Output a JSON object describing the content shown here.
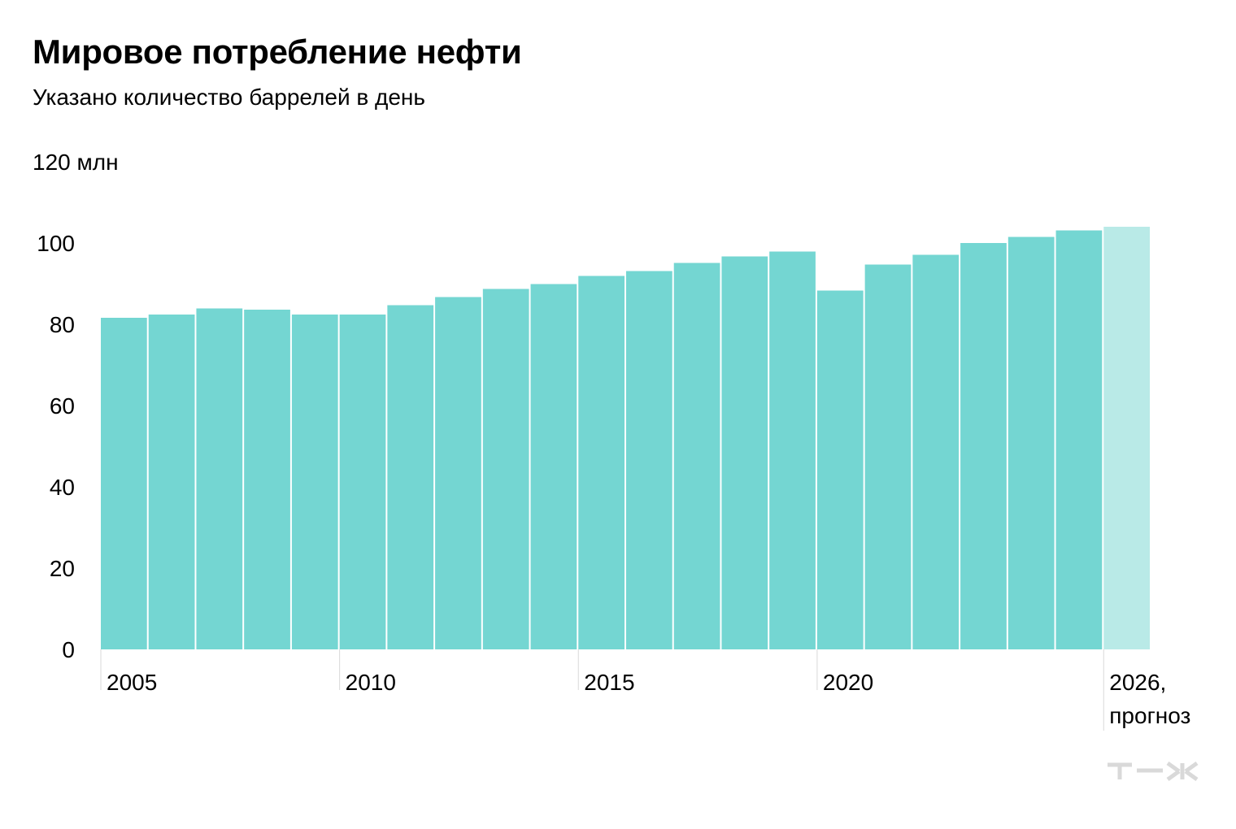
{
  "title": "Мировое потребление нефти",
  "subtitle": "Указано количество баррелей в день",
  "logo_text": "т—ж",
  "colors": {
    "bar": "#74d6d2",
    "bar_forecast": "#b9eae7",
    "text": "#000000",
    "tick": "#d9d9d9",
    "logo": "#d9d9d9"
  },
  "chart_data": {
    "type": "bar",
    "title": "Мировое потребление нефти",
    "subtitle": "Указано количество баррелей в день",
    "ylim": [
      0,
      120
    ],
    "yticks": [
      {
        "value": 0,
        "label": "0"
      },
      {
        "value": 20,
        "label": "20"
      },
      {
        "value": 40,
        "label": "40"
      },
      {
        "value": 60,
        "label": "60"
      },
      {
        "value": 80,
        "label": "80"
      },
      {
        "value": 100,
        "label": "100"
      },
      {
        "value": 120,
        "label": "120 млн"
      }
    ],
    "categories": [
      "2005",
      "2006",
      "2007",
      "2008",
      "2009",
      "2010",
      "2011",
      "2012",
      "2013",
      "2014",
      "2015",
      "2016",
      "2017",
      "2018",
      "2019",
      "2020",
      "2021",
      "2022",
      "2023",
      "2024",
      "2025",
      "2026"
    ],
    "values": [
      81.6,
      82.4,
      83.9,
      83.6,
      82.4,
      82.4,
      84.7,
      86.7,
      88.7,
      89.9,
      91.9,
      93.1,
      95.1,
      96.7,
      97.9,
      88.3,
      94.7,
      97.1,
      100.0,
      101.5,
      103.1,
      104.0
    ],
    "forecast": [
      false,
      false,
      false,
      false,
      false,
      false,
      false,
      false,
      false,
      false,
      false,
      false,
      false,
      false,
      false,
      false,
      false,
      false,
      false,
      false,
      false,
      true
    ],
    "xlabels": [
      {
        "category": "2005",
        "lines": [
          "2005"
        ]
      },
      {
        "category": "2010",
        "lines": [
          "2010"
        ]
      },
      {
        "category": "2015",
        "lines": [
          "2015"
        ]
      },
      {
        "category": "2020",
        "lines": [
          "2020"
        ]
      },
      {
        "category": "2026",
        "lines": [
          "2026,",
          "прогноз"
        ]
      }
    ],
    "grid": false,
    "legend": "none"
  }
}
